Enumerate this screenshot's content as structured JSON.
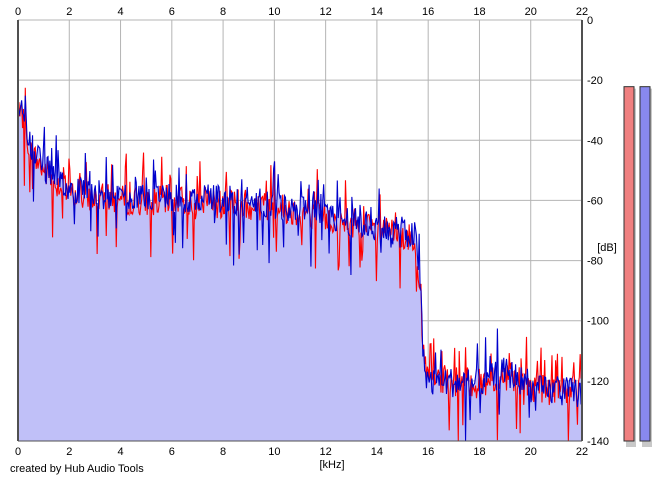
{
  "chart_data": {
    "type": "area",
    "xlabel": "[kHz]",
    "ylabel": "[dB]",
    "xlim": [
      0,
      22
    ],
    "ylim": [
      -140,
      0
    ],
    "x_ticks": [
      "0",
      "2",
      "4",
      "6",
      "8",
      "10",
      "12",
      "14",
      "16",
      "18",
      "20",
      "22"
    ],
    "y_ticks": [
      "0",
      "-20",
      "-40",
      "-60",
      "-80",
      "-100",
      "-120",
      "-140"
    ],
    "grid": true,
    "series": [
      {
        "color": "#ff0000",
        "profile": [
          [
            0,
            -32
          ],
          [
            0.2,
            -33
          ],
          [
            0.5,
            -44
          ],
          [
            1,
            -50
          ],
          [
            2,
            -58
          ],
          [
            4,
            -60
          ],
          [
            6,
            -60
          ],
          [
            8,
            -61
          ],
          [
            10,
            -62
          ],
          [
            12,
            -66
          ],
          [
            14,
            -70
          ],
          [
            15.5,
            -73
          ],
          [
            15.7,
            -88
          ],
          [
            15.8,
            -112
          ],
          [
            16,
            -119
          ],
          [
            18,
            -121
          ],
          [
            19,
            -118
          ],
          [
            19.5,
            -120
          ],
          [
            20,
            -122
          ],
          [
            22,
            -123
          ]
        ]
      },
      {
        "color": "#0000cc",
        "profile": [
          [
            0,
            -30
          ],
          [
            0.2,
            -31
          ],
          [
            0.5,
            -42
          ],
          [
            1,
            -49
          ],
          [
            2,
            -57
          ],
          [
            4,
            -59
          ],
          [
            6,
            -59
          ],
          [
            8,
            -60
          ],
          [
            10,
            -61
          ],
          [
            12,
            -65
          ],
          [
            14,
            -69
          ],
          [
            15.5,
            -72
          ],
          [
            15.7,
            -86
          ],
          [
            15.8,
            -113
          ],
          [
            16,
            -120
          ],
          [
            18,
            -121
          ],
          [
            19,
            -117
          ],
          [
            19.5,
            -119
          ],
          [
            20,
            -123
          ],
          [
            22,
            -124
          ]
        ]
      }
    ],
    "fill_color": "#c0c0f8",
    "spike": {
      "x": 10.0,
      "y": -47
    }
  },
  "level_meters": [
    {
      "color": "#f08080",
      "level": 0.93
    },
    {
      "color": "#8888ee",
      "level": 0.93
    }
  ],
  "credit": "created by Hub Audio Tools"
}
